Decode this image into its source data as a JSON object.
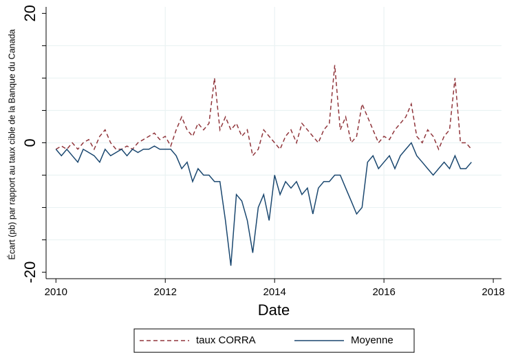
{
  "chart_data": {
    "type": "line",
    "xlabel": "Date",
    "ylabel": "Écart (pb) par rapport au taux cible de la Banque du Canada",
    "x": [
      2010.0,
      2010.1,
      2010.2,
      2010.3,
      2010.4,
      2010.5,
      2010.6,
      2010.7,
      2010.8,
      2010.9,
      2011.0,
      2011.1,
      2011.2,
      2011.3,
      2011.4,
      2011.5,
      2011.6,
      2011.7,
      2011.8,
      2011.9,
      2012.0,
      2012.1,
      2012.2,
      2012.3,
      2012.4,
      2012.5,
      2012.6,
      2012.7,
      2012.8,
      2012.9,
      2013.0,
      2013.1,
      2013.2,
      2013.3,
      2013.4,
      2013.5,
      2013.6,
      2013.7,
      2013.8,
      2013.9,
      2014.0,
      2014.1,
      2014.2,
      2014.3,
      2014.4,
      2014.5,
      2014.6,
      2014.7,
      2014.8,
      2014.9,
      2015.0,
      2015.1,
      2015.2,
      2015.3,
      2015.4,
      2015.5,
      2015.6,
      2015.7,
      2015.8,
      2015.9,
      2016.0,
      2016.1,
      2016.2,
      2016.3,
      2016.4,
      2016.5,
      2016.6,
      2016.7,
      2016.8,
      2016.9,
      2017.0,
      2017.1,
      2017.2,
      2017.3,
      2017.4,
      2017.5,
      2017.6
    ],
    "series": [
      {
        "name": "taux CORRA",
        "color": "#90353b",
        "dash": true,
        "values": [
          -1,
          -0.5,
          -1,
          0,
          -1,
          0,
          0.5,
          -1,
          1,
          2,
          0,
          -1,
          -1,
          -0.5,
          -1,
          0,
          0.5,
          1,
          1.5,
          0.5,
          1,
          -0.5,
          2,
          4,
          2,
          1,
          3,
          2,
          3,
          10,
          2,
          4,
          2,
          3,
          1,
          2,
          -2,
          -1,
          2,
          1,
          0,
          -1,
          1,
          2,
          0,
          3,
          2,
          1,
          0,
          2,
          3,
          12,
          2,
          4,
          0,
          1,
          6,
          4,
          2,
          0,
          1,
          0.5,
          2,
          3,
          4,
          6,
          1,
          0,
          2,
          1,
          -1,
          1,
          2,
          10,
          0,
          0,
          -1
        ]
      },
      {
        "name": "Moyenne",
        "color": "#1a476f",
        "dash": false,
        "values": [
          -1,
          -2,
          -1,
          -2,
          -3,
          -1,
          -1.5,
          -2,
          -3,
          -1,
          -2,
          -1.5,
          -1,
          -2,
          -1,
          -1.5,
          -1,
          -1,
          -0.5,
          -1,
          -1,
          -1,
          -2,
          -4,
          -3,
          -6,
          -4,
          -5,
          -5,
          -6,
          -6,
          -12,
          -19,
          -8,
          -9,
          -12,
          -17,
          -10,
          -8,
          -12,
          -5,
          -8,
          -6,
          -7,
          -6,
          -8,
          -7,
          -11,
          -7,
          -6,
          -6,
          -5,
          -5,
          -7,
          -9,
          -11,
          -10,
          -3,
          -2,
          -4,
          -3,
          -2,
          -4,
          -2,
          -1,
          0,
          -2,
          -3,
          -4,
          -5,
          -4,
          -3,
          -4,
          -2,
          -4,
          -4,
          -3
        ]
      }
    ],
    "xlim": [
      2009.82,
      2018.15
    ],
    "xticks": [
      2010,
      2012,
      2014,
      2016,
      2018
    ],
    "ylim": [
      -21,
      21
    ],
    "yticks": [
      -20,
      0,
      20
    ],
    "yticks_minor": [
      -15,
      -10,
      -5,
      5,
      10,
      15
    ],
    "grid": true,
    "legend": "bottom"
  }
}
